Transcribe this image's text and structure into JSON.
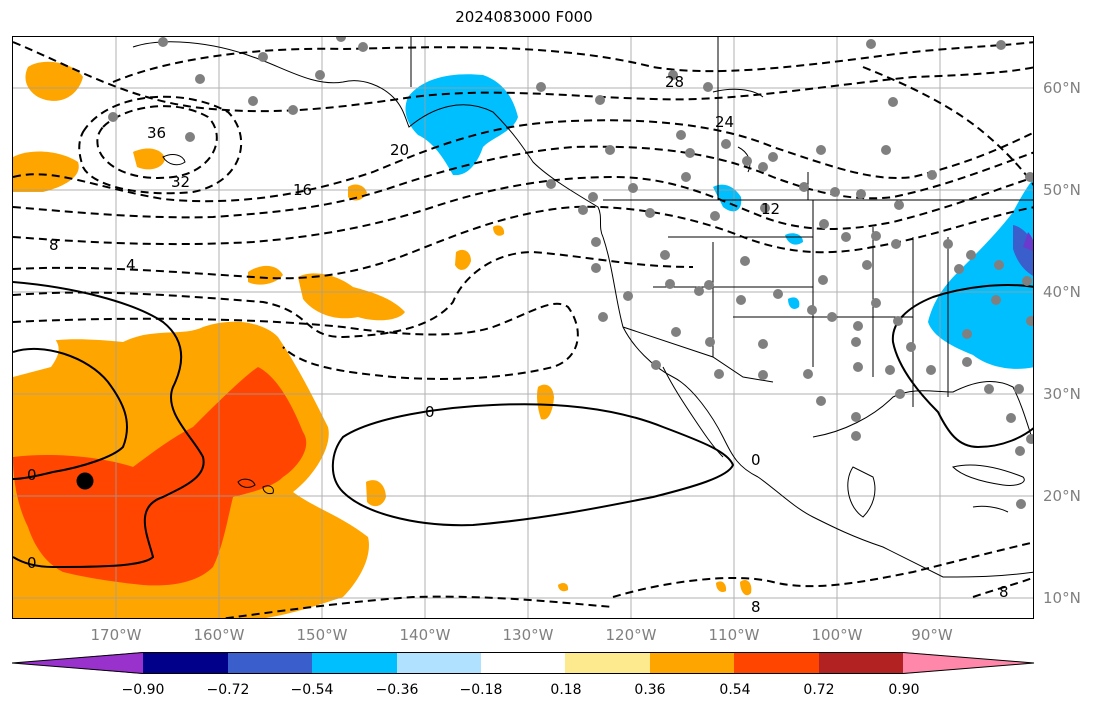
{
  "title": "2024083000 F000",
  "longitude_labels": [
    "170°W",
    "160°W",
    "150°W",
    "140°W",
    "130°W",
    "120°W",
    "110°W",
    "100°W",
    "90°W"
  ],
  "latitude_labels": [
    "60°N",
    "50°N",
    "40°N",
    "30°N",
    "20°N",
    "10°N"
  ],
  "colorbar": {
    "colors": [
      "#9932cc",
      "#00008b",
      "#3a5fcd",
      "#00bfff",
      "#b0e2ff",
      "#ffffff",
      "#fdea8e",
      "#ffa500",
      "#ff4500",
      "#b22222",
      "#ff88aa"
    ],
    "tick_labels": [
      "−0.90",
      "−0.72",
      "−0.54",
      "−0.36",
      "−0.18",
      "0.18",
      "0.36",
      "0.54",
      "0.72",
      "0.90"
    ]
  },
  "contour_labels": [
    "28",
    "36",
    "32",
    "24",
    "20",
    "16",
    "12",
    "8",
    "4",
    "0",
    "0",
    "0",
    "0",
    "8",
    "8"
  ],
  "map": {
    "projection": "PlateCarree",
    "lon_range": [
      -180,
      -80
    ],
    "lat_range": [
      8,
      65
    ],
    "field": "shaded anomaly with dashed/solid contour lines",
    "marker": "large black dot near 173°W 22°N"
  }
}
